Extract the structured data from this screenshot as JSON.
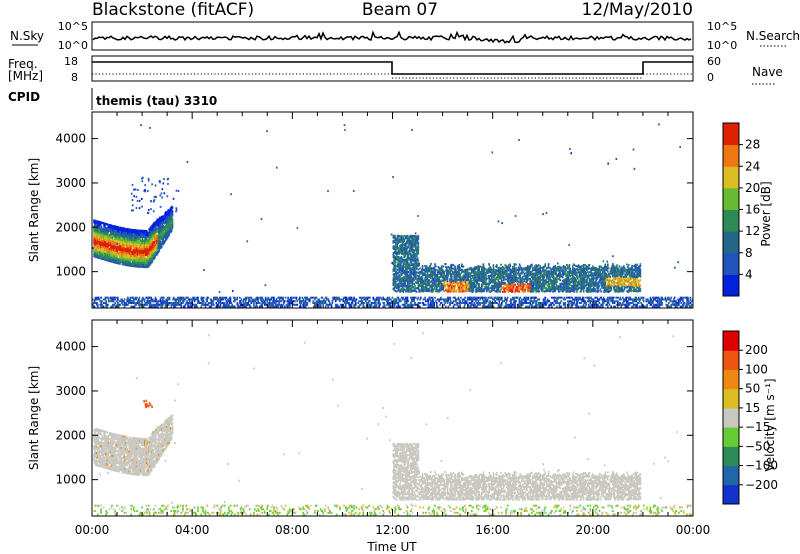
{
  "header": {
    "station": "Blackstone (fitACF)",
    "beam": "Beam 07",
    "date": "12/May/2010"
  },
  "strips": {
    "nsky_label": "N.Sky",
    "nsearch_label": "N.Search",
    "noise_ticks": [
      "10^5",
      "10^0"
    ],
    "freq_label": "Freq.",
    "freq_unit": "[MHz]",
    "freq_ticks": [
      "18",
      "8"
    ],
    "nave_label": "Nave",
    "nave_ticks": [
      "60",
      "0"
    ],
    "cpid_label": "CPID",
    "cpid_value": "themis (tau) 3310"
  },
  "chart_data": [
    {
      "type": "heatmap",
      "name": "power-panel",
      "ylabel": "Slant Range [km]",
      "xlabel": "",
      "xlim": [
        0,
        24
      ],
      "ylim": [
        180,
        4600
      ],
      "yticks": [
        "1000",
        "2000",
        "3000",
        "4000"
      ],
      "colorbar": {
        "label": "Power [dB]",
        "ticks": [
          "4",
          "8",
          "12",
          "16",
          "20",
          "24",
          "28"
        ],
        "range": [
          0,
          30
        ],
        "colors": [
          "#0022dd",
          "#2255bb",
          "#226688",
          "#2e8b57",
          "#66bb33",
          "#ddbb22",
          "#ee7711",
          "#dd2200"
        ]
      },
      "features": [
        {
          "region": "arc",
          "time_start": 0.0,
          "time_end": 3.2,
          "range_min": 1200,
          "range_max": 3100,
          "peak_db": 28
        },
        {
          "region": "band",
          "time_start": 12.0,
          "time_end": 21.9,
          "range_min": 500,
          "range_max": 1900,
          "peak_db": 28
        },
        {
          "region": "ground",
          "time_start": 0.0,
          "time_end": 24.0,
          "range_min": 180,
          "range_max": 450,
          "peak_db": 8
        }
      ]
    },
    {
      "type": "heatmap",
      "name": "velocity-panel",
      "ylabel": "Slant Range [km]",
      "xlabel": "Time UT",
      "xlim": [
        0,
        24
      ],
      "ylim": [
        180,
        4600
      ],
      "yticks": [
        "1000",
        "2000",
        "3000",
        "4000"
      ],
      "xticks": [
        "00:00",
        "04:00",
        "08:00",
        "12:00",
        "16:00",
        "20:00",
        "00:00"
      ],
      "colorbar": {
        "label": "Velocity [m s⁻¹]",
        "ticks": [
          "200",
          "100",
          "50",
          "15",
          "−15",
          "−50",
          "−100",
          "−200"
        ],
        "colors": [
          "#1133cc",
          "#2266aa",
          "#2e8b57",
          "#66cc33",
          "#c8c8c0",
          "#ddbb22",
          "#ee8811",
          "#ee5511",
          "#dd0000"
        ]
      }
    }
  ]
}
